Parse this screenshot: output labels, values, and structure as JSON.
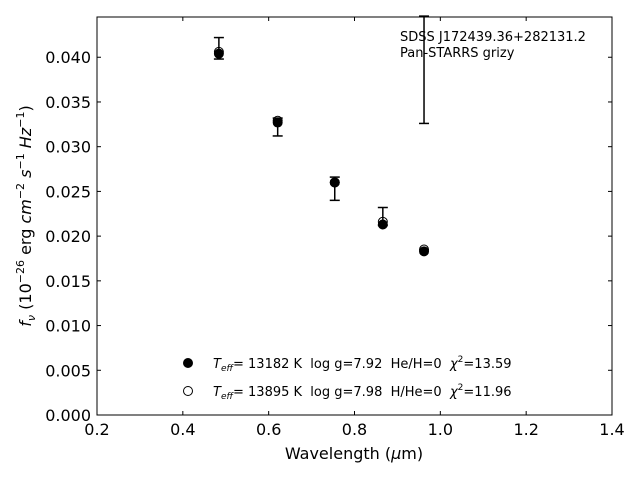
{
  "chart_data": {
    "type": "scatter",
    "annotation_lines": [
      "SDSS J172439.36+282131.2",
      "Pan-STARRS grizy"
    ],
    "xlabel": "Wavelength (μm)",
    "ylabel": "f_ν (10^-26 erg cm^-2 s^-1 Hz^-1)",
    "xlim": [
      0.2,
      1.4
    ],
    "ylim": [
      0.0,
      0.0445
    ],
    "xticks": [
      0.2,
      0.4,
      0.6,
      0.8,
      1.0,
      1.2,
      1.4
    ],
    "xtick_labels": [
      "0.2",
      "0.4",
      "0.6",
      "0.8",
      "1.0",
      "1.2",
      "1.4"
    ],
    "yticks": [
      0.0,
      0.005,
      0.01,
      0.015,
      0.02,
      0.025,
      0.03,
      0.035,
      0.04
    ],
    "ytick_labels": [
      "0.000",
      "0.005",
      "0.010",
      "0.015",
      "0.020",
      "0.025",
      "0.030",
      "0.035",
      "0.040"
    ],
    "grid": false,
    "observed": {
      "marker": "errorbar",
      "points": [
        {
          "x": 0.484,
          "y": 0.041,
          "err": 0.0012
        },
        {
          "x": 0.621,
          "y": 0.0322,
          "err": 0.001
        },
        {
          "x": 0.754,
          "y": 0.0253,
          "err": 0.0013
        },
        {
          "x": 0.866,
          "y": 0.0222,
          "err": 0.001
        },
        {
          "x": 0.962,
          "y": 0.0386,
          "err": 0.006
        }
      ]
    },
    "series": [
      {
        "marker": "filled-circle",
        "points": [
          {
            "x": 0.484,
            "y": 0.0404
          },
          {
            "x": 0.621,
            "y": 0.0327
          },
          {
            "x": 0.754,
            "y": 0.026
          },
          {
            "x": 0.866,
            "y": 0.0213
          },
          {
            "x": 0.962,
            "y": 0.0183
          }
        ]
      },
      {
        "marker": "open-circle",
        "points": [
          {
            "x": 0.484,
            "y": 0.0406
          },
          {
            "x": 0.621,
            "y": 0.0329
          },
          {
            "x": 0.754,
            "y": 0.026
          },
          {
            "x": 0.866,
            "y": 0.0216
          },
          {
            "x": 0.962,
            "y": 0.0185
          }
        ]
      }
    ],
    "legend": {
      "placement": "lower-center",
      "entries": [
        {
          "marker": "filled-circle",
          "teff_label": "T",
          "teff_sub": "eff",
          "text": "= 13182 K  log g=7.92  He/H=0  ",
          "chi_symbol": "χ",
          "chi_sup": "2",
          "chi_value": "=13.59"
        },
        {
          "marker": "open-circle",
          "teff_label": "T",
          "teff_sub": "eff",
          "text": "= 13895 K  log g=7.98  H/He=0  ",
          "chi_symbol": "χ",
          "chi_sup": "2",
          "chi_value": "=11.96"
        }
      ]
    }
  }
}
